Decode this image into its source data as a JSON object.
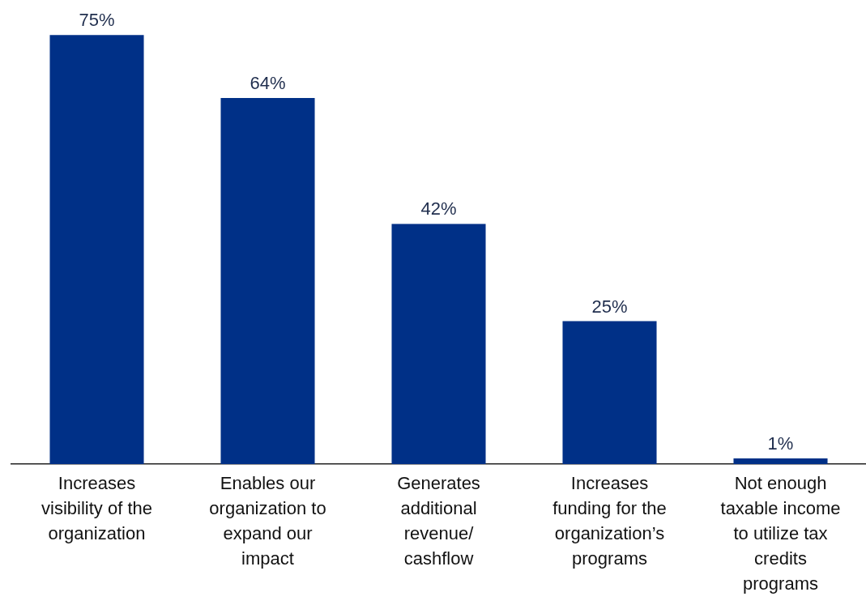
{
  "chart_data": {
    "type": "bar",
    "categories": [
      "Increases visibility of the organization",
      "Enables our organization to expand our impact",
      "Generates additional revenue/ cashflow",
      "Increases funding for the organization’s programs",
      "Not enough taxable income to utilize tax credits programs"
    ],
    "values": [
      75,
      64,
      42,
      25,
      1
    ],
    "value_labels": [
      "75%",
      "64%",
      "42%",
      "25%",
      "1%"
    ],
    "color": "#003087",
    "tick_labels": "x",
    "grid": false,
    "legend": false
  }
}
